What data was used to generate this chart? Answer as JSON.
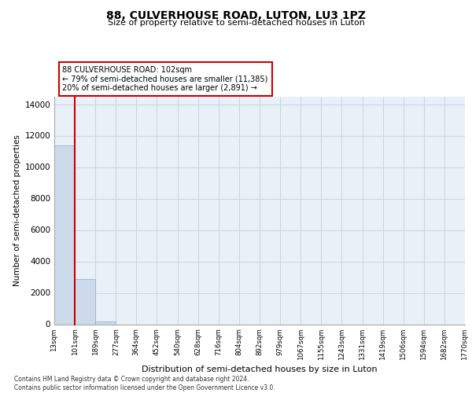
{
  "title1": "88, CULVERHOUSE ROAD, LUTON, LU3 1PZ",
  "title2": "Size of property relative to semi-detached houses in Luton",
  "xlabel": "Distribution of semi-detached houses by size in Luton",
  "ylabel": "Number of semi-detached properties",
  "annotation_line1": "88 CULVERHOUSE ROAD: 102sqm",
  "annotation_line2": "← 79% of semi-detached houses are smaller (11,385)",
  "annotation_line3": "20% of semi-detached houses are larger (2,891) →",
  "footer1": "Contains HM Land Registry data © Crown copyright and database right 2024.",
  "footer2": "Contains public sector information licensed under the Open Government Licence v3.0.",
  "property_size": 102,
  "bar_edges": [
    13,
    101,
    189,
    277,
    364,
    452,
    540,
    628,
    716,
    804,
    892,
    979,
    1067,
    1155,
    1243,
    1331,
    1419,
    1506,
    1594,
    1682,
    1770
  ],
  "bar_labels": [
    "13sqm",
    "101sqm",
    "189sqm",
    "277sqm",
    "364sqm",
    "452sqm",
    "540sqm",
    "628sqm",
    "716sqm",
    "804sqm",
    "892sqm",
    "979sqm",
    "1067sqm",
    "1155sqm",
    "1243sqm",
    "1331sqm",
    "1419sqm",
    "1506sqm",
    "1594sqm",
    "1682sqm",
    "1770sqm"
  ],
  "bar_heights": [
    11385,
    2891,
    180,
    0,
    0,
    0,
    0,
    0,
    0,
    0,
    0,
    0,
    0,
    0,
    0,
    0,
    0,
    0,
    0,
    0
  ],
  "bar_color": "#ccdaeb",
  "bar_edge_color": "#8aaac8",
  "property_line_color": "#cc0000",
  "annotation_box_color": "#cc0000",
  "grid_color": "#c5d5e5",
  "bg_color": "#eaf0f8",
  "ylim": [
    0,
    14500
  ],
  "yticks": [
    0,
    2000,
    4000,
    6000,
    8000,
    10000,
    12000,
    14000
  ]
}
